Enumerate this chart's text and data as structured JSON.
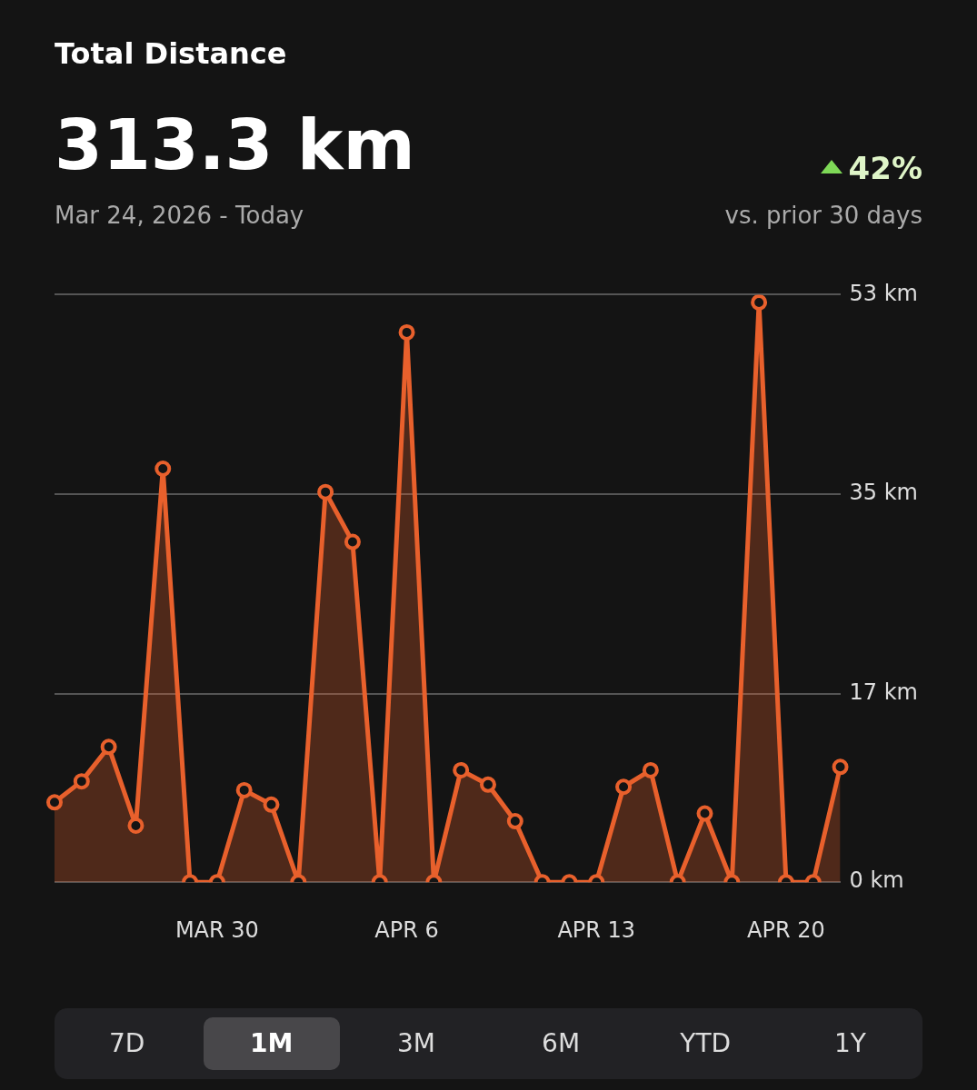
{
  "chart_data": {
    "type": "area",
    "title": "Total Distance",
    "annotations": [
      "313.3 km",
      "Mar 24, 2026 - Today",
      "42%",
      "vs. prior 30 days",
      "7D",
      "1M",
      "3M",
      "6M",
      "YTD",
      "1Y"
    ],
    "categories": [
      null,
      null,
      null,
      null,
      null,
      null,
      "MAR 30",
      null,
      null,
      null,
      null,
      null,
      null,
      "APR 6",
      null,
      null,
      null,
      null,
      null,
      null,
      "APR 13",
      null,
      null,
      null,
      null,
      null,
      null,
      "APR 20",
      null,
      null
    ],
    "series": [
      {
        "color": "#e8602c",
        "values": [
          7.2,
          9.1,
          12.2,
          5.1,
          37.3,
          0,
          0,
          8.3,
          7.0,
          0,
          35.2,
          30.7,
          0,
          49.6,
          0,
          10.1,
          8.8,
          5.5,
          0,
          0,
          0,
          8.6,
          10.1,
          0,
          6.2,
          0,
          52.3,
          0,
          0,
          10.4
        ]
      }
    ],
    "ylim": [
      0,
      53
    ],
    "yticks": [
      {
        "value": 0,
        "label": "0 km"
      },
      {
        "value": 17,
        "label": "17 km"
      },
      {
        "value": 35,
        "label": "35 km"
      },
      {
        "value": 53,
        "label": "53 km"
      }
    ],
    "grid": "y",
    "legend": false,
    "marker": "circle",
    "line_style": "solid"
  }
}
